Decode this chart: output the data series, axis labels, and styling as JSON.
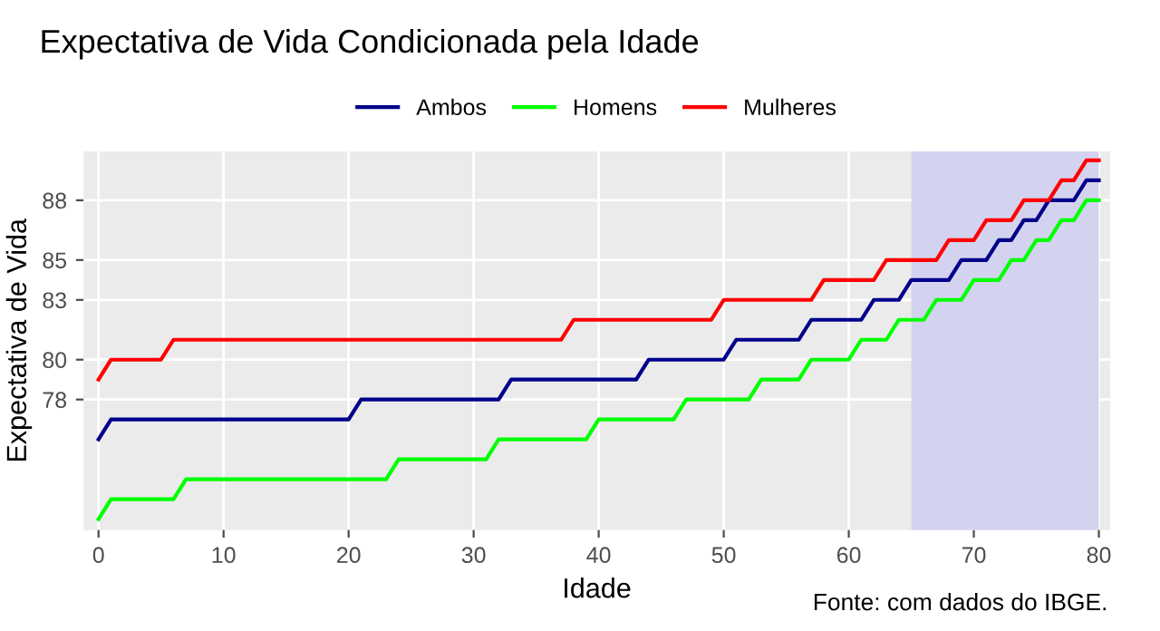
{
  "chart_data": {
    "type": "line",
    "title": "Expectativa de Vida Condicionada pela Idade",
    "xlabel": "Idade",
    "ylabel": "Expectativa de Vida",
    "annotations": [
      "Fonte: com dados do IBGE."
    ],
    "series": [
      {
        "name": "Ambos",
        "color": "#00008b",
        "x": [
          0,
          1,
          20,
          21,
          32,
          33,
          43,
          44,
          50,
          51,
          56,
          57,
          61,
          62,
          64,
          65,
          68,
          69,
          71,
          72,
          73,
          74,
          75,
          76,
          78,
          79,
          80
        ],
        "values": [
          76,
          77,
          77,
          78,
          78,
          79,
          79,
          80,
          80,
          81,
          81,
          82,
          82,
          83,
          83,
          84,
          84,
          85,
          85,
          86,
          86,
          87,
          87,
          88,
          88,
          89,
          89
        ]
      },
      {
        "name": "Homens",
        "color": "#00ff00",
        "x": [
          0,
          1,
          6,
          7,
          23,
          24,
          31,
          32,
          39,
          40,
          46,
          47,
          52,
          53,
          56,
          57,
          60,
          61,
          63,
          64,
          66,
          67,
          69,
          70,
          72,
          73,
          74,
          75,
          76,
          77,
          78,
          79,
          80
        ],
        "values": [
          72,
          73,
          73,
          74,
          74,
          75,
          75,
          76,
          76,
          77,
          77,
          78,
          78,
          79,
          79,
          80,
          80,
          81,
          81,
          82,
          82,
          83,
          83,
          84,
          84,
          85,
          85,
          86,
          86,
          87,
          87,
          88,
          88
        ]
      },
      {
        "name": "Mulheres",
        "color": "#ff0000",
        "x": [
          0,
          1,
          5,
          6,
          37,
          38,
          49,
          50,
          57,
          58,
          62,
          63,
          67,
          68,
          70,
          71,
          73,
          74,
          76,
          77,
          78,
          79,
          80
        ],
        "values": [
          79,
          80,
          80,
          81,
          81,
          82,
          82,
          83,
          83,
          84,
          84,
          85,
          85,
          86,
          86,
          87,
          87,
          88,
          88,
          89,
          89,
          90,
          90
        ]
      }
    ],
    "bands": [
      {
        "axis": "x",
        "from": 65,
        "to": 80,
        "color": "#d3d3ef"
      }
    ],
    "xlim": [
      -1.2,
      80.9
    ],
    "ylim": [
      71.45,
      90.45
    ],
    "xticks": [
      0,
      10,
      20,
      30,
      40,
      50,
      60,
      70,
      80
    ],
    "yticks": [
      78,
      80,
      83,
      85,
      88
    ],
    "grid": true,
    "legend": "top",
    "marker": "none",
    "line_style": "solid"
  }
}
